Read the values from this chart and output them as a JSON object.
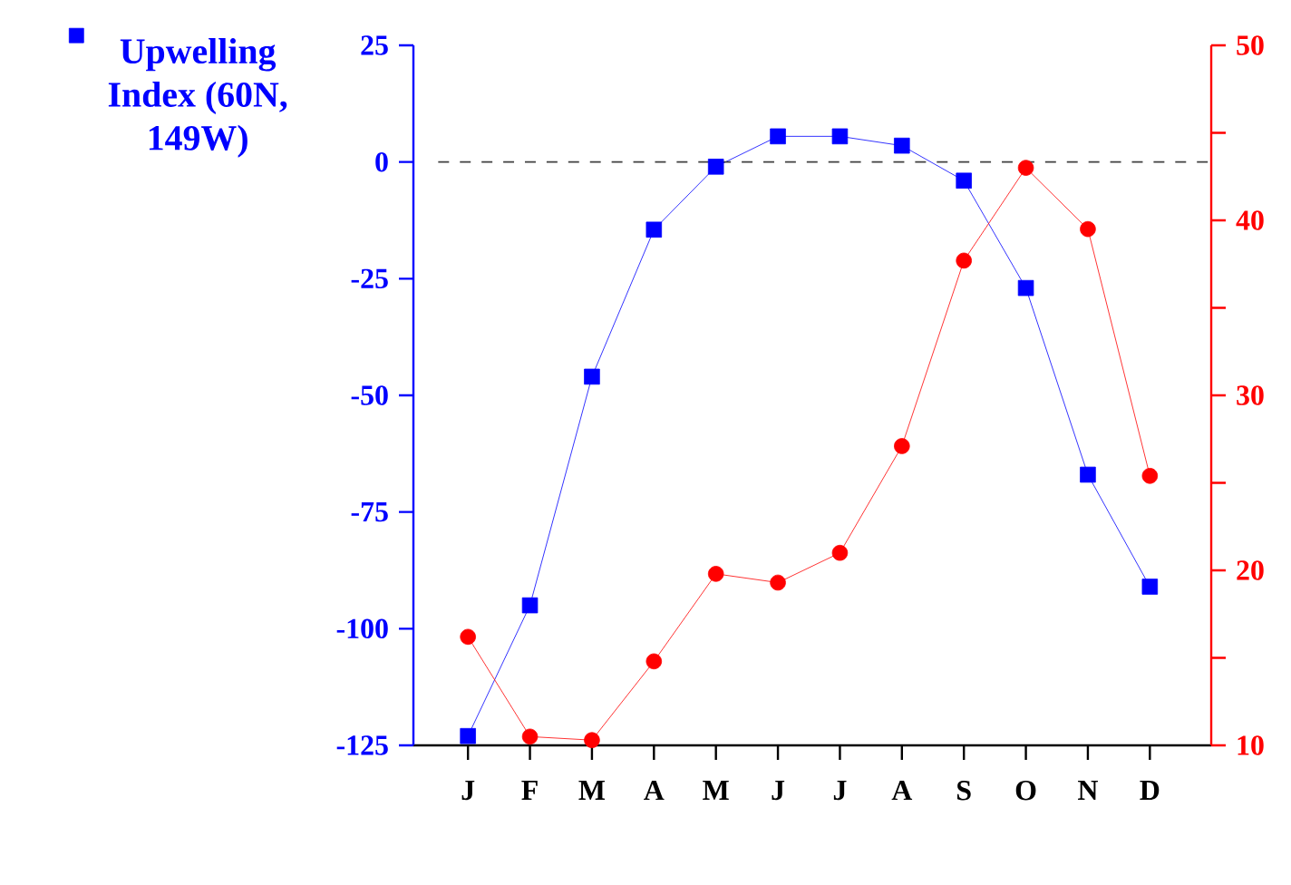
{
  "chart_data": {
    "type": "line",
    "categories": [
      "J",
      "F",
      "M",
      "A",
      "M",
      "J",
      "J",
      "A",
      "S",
      "O",
      "N",
      "D"
    ],
    "series": [
      {
        "name": "Upwelling Index (60N, 149W)",
        "color": "#0000ff",
        "marker": "square",
        "values": [
          -123,
          -95,
          -46,
          -14.5,
          -1,
          5.5,
          5.5,
          3.5,
          -4,
          -27,
          -67,
          -91
        ]
      },
      {
        "color": "#ff0000",
        "marker": "circle",
        "axis": "y2",
        "values": [
          16.2,
          10.5,
          10.3,
          14.8,
          19.8,
          19.3,
          21,
          27.1,
          37.7,
          43,
          39.5,
          25.4
        ]
      }
    ],
    "ylim": [
      -125,
      25
    ],
    "yticks": [
      -125,
      -100,
      -75,
      -50,
      -25,
      0,
      25
    ],
    "y2lim": [
      10,
      50
    ],
    "y2ticks": [
      10,
      {
        "value": 15,
        "label": null
      },
      20,
      {
        "value": 25,
        "label": null
      },
      30,
      {
        "value": 35,
        "label": null
      },
      40,
      {
        "value": 45,
        "label": null
      },
      50
    ],
    "ref_lines": [
      {
        "axis": "y",
        "value": 0,
        "color": "#404040",
        "line_style": "dashed"
      }
    ],
    "legend": "left"
  }
}
